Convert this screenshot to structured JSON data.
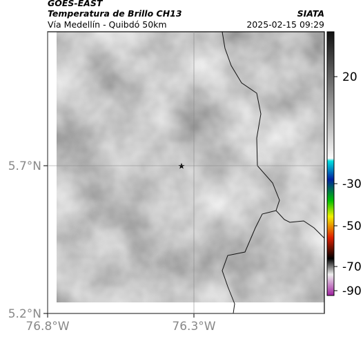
{
  "header": {
    "title": "GOES-EAST",
    "subtitle": "Temperatura de Brillo CH13",
    "route": "Vía Medellín - Quibdó 50km",
    "source": "SIATA",
    "timestamp": "2025-02-15 09:29"
  },
  "map": {
    "lat_ticks": [
      {
        "value": 5.7,
        "label": "5.7°N"
      },
      {
        "value": 5.2,
        "label": "5.2°N"
      }
    ],
    "lon_ticks": [
      {
        "value": -76.8,
        "label": "76.8°W"
      },
      {
        "value": -76.3,
        "label": "76.3°W"
      }
    ]
  },
  "colorbar": {
    "ticks": [
      20,
      -30,
      -50,
      -70,
      -90
    ]
  }
}
